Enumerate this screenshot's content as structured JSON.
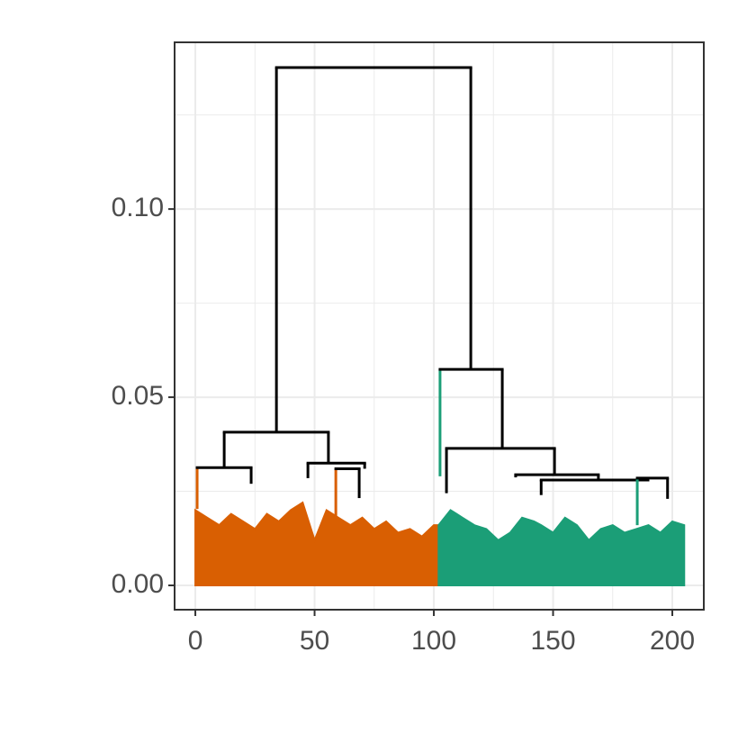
{
  "chart_data": {
    "type": "dendrogram",
    "xlim": [
      -8.7,
      213.2
    ],
    "xticks": [
      0,
      50,
      100,
      150,
      200
    ],
    "minor_xticks": [
      25,
      75,
      125,
      175
    ],
    "ylim": [
      -0.00646,
      0.1443
    ],
    "yticks": [
      {
        "value": 0,
        "label": "0.00"
      },
      {
        "value": 0.05,
        "label": "0.05"
      },
      {
        "value": 0.1,
        "label": "0.10"
      }
    ],
    "minor_yticks": [
      0.025,
      0.075,
      0.125
    ],
    "grid": true,
    "areas": [
      {
        "color": "#d95f02",
        "x": [
          0,
          5,
          10,
          15,
          20,
          25,
          30,
          35,
          40,
          45,
          50,
          55,
          60,
          65,
          70,
          75,
          80,
          85,
          90,
          95,
          100,
          102
        ],
        "values": [
          0.02,
          0.018,
          0.016,
          0.019,
          0.017,
          0.015,
          0.019,
          0.017,
          0.02,
          0.022,
          0.012,
          0.02,
          0.018,
          0.016,
          0.018,
          0.015,
          0.017,
          0.014,
          0.015,
          0.013,
          0.016,
          0.016
        ]
      },
      {
        "color": "#1b9e77",
        "x": [
          102,
          107,
          112,
          117,
          122,
          127,
          132,
          137,
          142,
          145,
          150,
          155,
          160,
          165,
          170,
          175,
          180,
          185,
          190,
          195,
          200,
          205
        ],
        "values": [
          0.016,
          0.02,
          0.018,
          0.016,
          0.015,
          0.012,
          0.014,
          0.018,
          0.017,
          0.016,
          0.014,
          0.018,
          0.016,
          0.012,
          0.015,
          0.016,
          0.014,
          0.015,
          0.016,
          0.014,
          0.017,
          0.016
        ]
      }
    ],
    "links": [
      {
        "x": [
          34,
          115.5
        ],
        "y": 0.1376,
        "child_y": [
          0.0407,
          0.0574
        ],
        "colors": [
          "#000000",
          "#000000"
        ]
      },
      {
        "x": [
          12.1,
          55.8
        ],
        "y": 0.0407,
        "child_y": [
          0.0313,
          0.0325
        ],
        "colors": [
          "#000000",
          "#000000"
        ]
      },
      {
        "x": [
          0.75,
          23.4
        ],
        "y": 0.0313,
        "child_y": [
          0.0203,
          0.027
        ],
        "colors": [
          "#d95f02",
          "#000000"
        ]
      },
      {
        "x": [
          47.2,
          71
        ],
        "y": 0.0325,
        "child_y": [
          0.0285,
          0.031
        ],
        "colors": [
          "#000000",
          "#000000"
        ]
      },
      {
        "x": [
          58.9,
          68.7
        ],
        "y": 0.031,
        "child_y": [
          0.018,
          0.0232
        ],
        "colors": [
          "#d95f02",
          "#000000"
        ]
      },
      {
        "x": [
          102.6,
          128.7
        ],
        "y": 0.0574,
        "child_y": [
          0.029,
          0.0364
        ],
        "colors": [
          "#1b9e77",
          "#000000"
        ]
      },
      {
        "x": [
          105.3,
          150.6
        ],
        "y": 0.0364,
        "child_y": [
          0.0245,
          0.0294
        ],
        "colors": [
          "#000000",
          "#000000"
        ]
      },
      {
        "x": [
          134.3,
          169
        ],
        "y": 0.0294,
        "child_y": [
          0.0287,
          0.028
        ],
        "colors": [
          "#000000",
          "#000000"
        ]
      },
      {
        "x": [
          145,
          189.8
        ],
        "y": 0.028,
        "child_y": [
          0.024,
          0.0285
        ],
        "colors": [
          "#000000",
          "#000000"
        ]
      },
      {
        "x": [
          185.3,
          198
        ],
        "y": 0.0285,
        "child_y": [
          0.016,
          0.023
        ],
        "colors": [
          "#1b9e77",
          "#000000"
        ]
      }
    ]
  }
}
